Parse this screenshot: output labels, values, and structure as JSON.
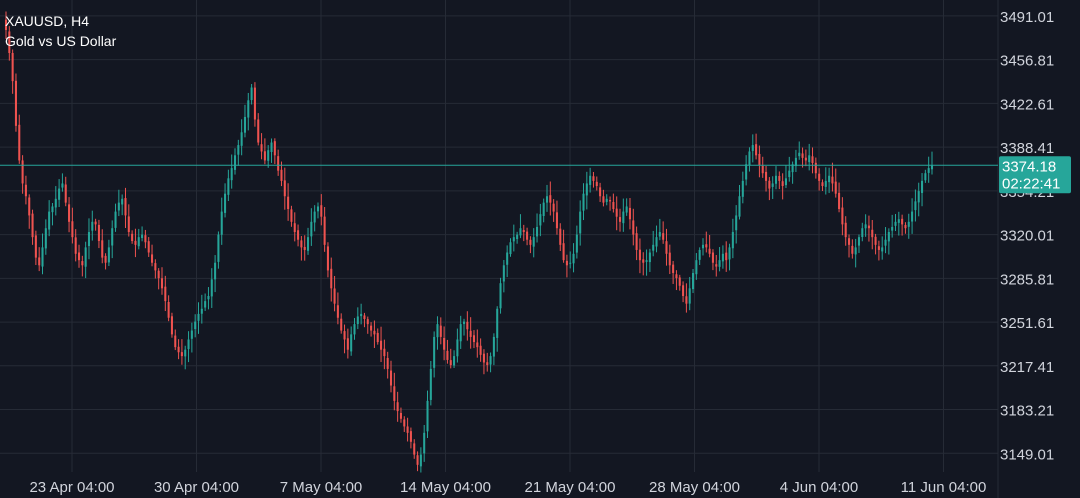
{
  "symbol": {
    "title": "XAUUSD, H4",
    "subtitle": "Gold vs US Dollar"
  },
  "colors": {
    "background": "#131722",
    "grid": "#262b36",
    "bull": "#26a69a",
    "bear": "#ef5350",
    "axis_text": "#d1d4dc",
    "price_line": "#26a69a",
    "badge_bg": "#26a69a",
    "badge_text": "#ffffff"
  },
  "price_badge": {
    "price": "3374.18",
    "countdown": "02:22:41"
  },
  "chart_data": {
    "type": "candlestick",
    "title": "XAUUSD, H4",
    "subtitle": "Gold vs US Dollar",
    "y_ticks": [
      "3491.01",
      "3456.81",
      "3422.61",
      "3388.41",
      "3354.21",
      "3320.01",
      "3285.81",
      "3251.61",
      "3217.41",
      "3183.21",
      "3149.01"
    ],
    "x_ticks": [
      "23 Apr 04:00",
      "30 Apr 04:00",
      "7 May 04:00",
      "14 May 04:00",
      "21 May 04:00",
      "28 May 04:00",
      "4 Jun 04:00",
      "11 Jun 04:00"
    ],
    "ylim": [
      3125,
      3505
    ],
    "current_price": 3374.18,
    "grid": true,
    "close_path": [
      3480,
      3462,
      3440,
      3405,
      3378,
      3360,
      3350,
      3335,
      3318,
      3302,
      3296,
      3310,
      3325,
      3338,
      3342,
      3348,
      3356,
      3360,
      3345,
      3330,
      3318,
      3305,
      3300,
      3296,
      3310,
      3322,
      3330,
      3328,
      3315,
      3302,
      3298,
      3310,
      3325,
      3338,
      3345,
      3348,
      3335,
      3322,
      3315,
      3312,
      3318,
      3320,
      3314,
      3306,
      3298,
      3292,
      3286,
      3278,
      3268,
      3255,
      3242,
      3232,
      3228,
      3225,
      3230,
      3238,
      3245,
      3252,
      3258,
      3262,
      3268,
      3272,
      3285,
      3298,
      3320,
      3338,
      3352,
      3364,
      3372,
      3382,
      3390,
      3400,
      3412,
      3425,
      3435,
      3410,
      3392,
      3385,
      3378,
      3386,
      3392,
      3382,
      3370,
      3362,
      3350,
      3340,
      3330,
      3322,
      3316,
      3310,
      3308,
      3318,
      3330,
      3338,
      3342,
      3334,
      3312,
      3292,
      3278,
      3266,
      3255,
      3245,
      3238,
      3230,
      3242,
      3250,
      3256,
      3258,
      3254,
      3250,
      3245,
      3242,
      3236,
      3230,
      3225,
      3215,
      3202,
      3190,
      3182,
      3176,
      3170,
      3165,
      3158,
      3148,
      3140,
      3148,
      3165,
      3190,
      3215,
      3240,
      3250,
      3240,
      3230,
      3222,
      3218,
      3225,
      3238,
      3250,
      3252,
      3246,
      3240,
      3236,
      3232,
      3226,
      3220,
      3218,
      3225,
      3240,
      3262,
      3282,
      3296,
      3306,
      3314,
      3318,
      3320,
      3325,
      3322,
      3316,
      3312,
      3318,
      3326,
      3336,
      3345,
      3350,
      3345,
      3338,
      3325,
      3312,
      3300,
      3296,
      3298,
      3305,
      3320,
      3338,
      3352,
      3360,
      3366,
      3362,
      3358,
      3350,
      3345,
      3348,
      3346,
      3340,
      3334,
      3330,
      3338,
      3342,
      3332,
      3320,
      3308,
      3300,
      3298,
      3300,
      3306,
      3312,
      3318,
      3322,
      3316,
      3305,
      3296,
      3290,
      3286,
      3280,
      3272,
      3266,
      3278,
      3290,
      3300,
      3308,
      3312,
      3310,
      3305,
      3298,
      3295,
      3300,
      3305,
      3300,
      3310,
      3322,
      3335,
      3350,
      3362,
      3375,
      3385,
      3390,
      3382,
      3374,
      3368,
      3362,
      3356,
      3360,
      3366,
      3362,
      3358,
      3364,
      3370,
      3375,
      3380,
      3384,
      3380,
      3378,
      3382,
      3376,
      3368,
      3362,
      3358,
      3362,
      3366,
      3360,
      3352,
      3340,
      3328,
      3318,
      3312,
      3305,
      3310,
      3318,
      3325,
      3328,
      3325,
      3318,
      3312,
      3308,
      3310,
      3316,
      3322,
      3326,
      3330,
      3332,
      3328,
      3325,
      3330,
      3338,
      3346,
      3354,
      3362,
      3368,
      3372,
      3374.18
    ]
  }
}
